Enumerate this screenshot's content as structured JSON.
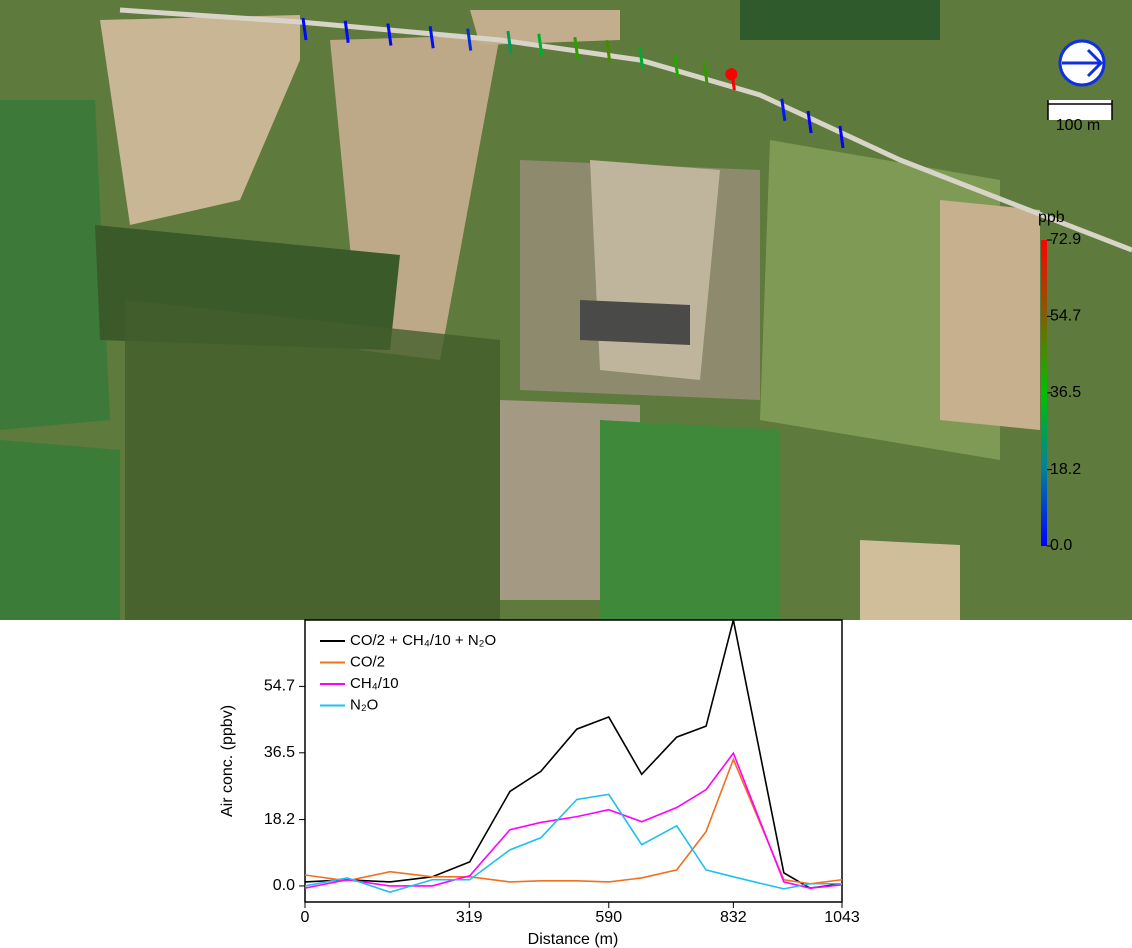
{
  "map": {
    "scale_label": "100 m",
    "colorbar": {
      "label": "ppb",
      "lim": [
        0,
        72.9
      ],
      "ticks": [
        {
          "value": 0,
          "label": "0.0"
        },
        18.2,
        36.5,
        54.7,
        72.9
      ]
    }
  },
  "chart_data": {
    "type": "line",
    "x": [
      0,
      82,
      165,
      247,
      320,
      398,
      458,
      528,
      590,
      654,
      722,
      779,
      832,
      930,
      981,
      1043
    ],
    "series": [
      {
        "name": "CO/2 + CH₄/10 + N₂O",
        "color": "#000000",
        "values": [
          1.1,
          1.7,
          1.1,
          2.5,
          6.6,
          25.9,
          31.4,
          43,
          46.3,
          30.6,
          40.8,
          43.8,
          72.9,
          3.6,
          -0.6,
          0.6
        ]
      },
      {
        "name": "CO/2",
        "color": "#f07020",
        "values": [
          3,
          1.4,
          3.9,
          2.5,
          2.5,
          1.1,
          1.4,
          1.4,
          1.1,
          2.2,
          4.4,
          14.9,
          34.7,
          1.7,
          0.6,
          1.7
        ]
      },
      {
        "name": "CH₄/10",
        "color": "#ff00ff",
        "values": [
          -0.6,
          1.7,
          0,
          0,
          2.8,
          15.4,
          17.4,
          19,
          20.9,
          17.6,
          21.5,
          26.4,
          36.4,
          1.1,
          -0.6,
          0.3
        ]
      },
      {
        "name": "N₂O",
        "color": "#20bff0",
        "values": [
          0,
          2.2,
          -1.7,
          1.7,
          1.7,
          9.9,
          13.2,
          23.7,
          25.1,
          11.3,
          16.5,
          4.4,
          2.5,
          -0.8,
          0.6,
          0.6
        ]
      }
    ],
    "xlim": [
      0,
      1043
    ],
    "xticks": [
      0,
      319,
      590,
      832,
      1043
    ],
    "ylim": [
      -4.4,
      72.9
    ],
    "yticks": [
      {
        "value": 0,
        "label": "0.0"
      },
      18.2,
      36.5,
      54.7
    ],
    "xlabel": "Distance (m)",
    "ylabel": "Air conc. (ppbv)"
  }
}
